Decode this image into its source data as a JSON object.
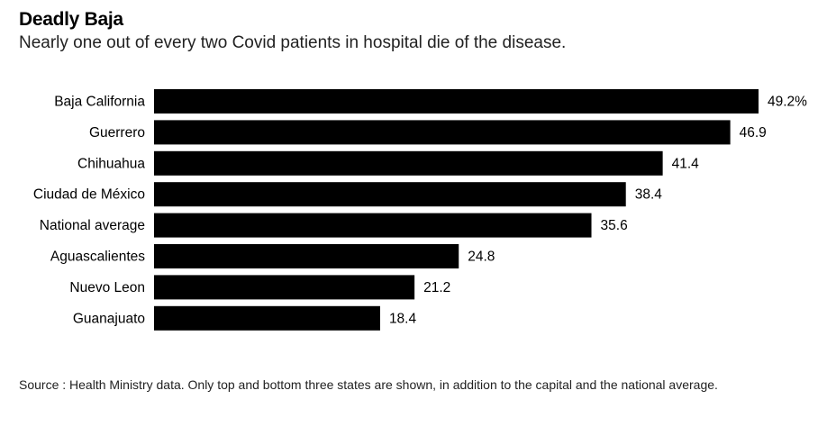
{
  "title": "Deadly Baja",
  "subtitle": "Nearly one out of every two Covid patients in hospital die of the disease.",
  "source": "Source : Health Ministry data. Only top and bottom three states are shown, in addition to the capital and the national average.",
  "colors": {
    "bar": "#000000",
    "text": "#000000"
  },
  "chart_data": {
    "type": "bar",
    "orientation": "horizontal",
    "title": "Deadly Baja",
    "subtitle": "Nearly one out of every two Covid patients in hospital die of the disease.",
    "categories": [
      "Baja California",
      "Guerrero",
      "Chihuahua",
      "Ciudad de México",
      "National average",
      "Aguascalientes",
      "Nuevo Leon",
      "Guanajuato"
    ],
    "values": [
      49.2,
      46.9,
      41.4,
      38.4,
      35.6,
      24.8,
      21.2,
      18.4
    ],
    "value_labels": [
      "49.2%",
      "46.9",
      "41.4",
      "38.4",
      "35.6",
      "24.8",
      "21.2",
      "18.4"
    ],
    "unit": "%",
    "xlim": [
      0,
      49.2
    ],
    "grid": false,
    "legend": "none"
  }
}
